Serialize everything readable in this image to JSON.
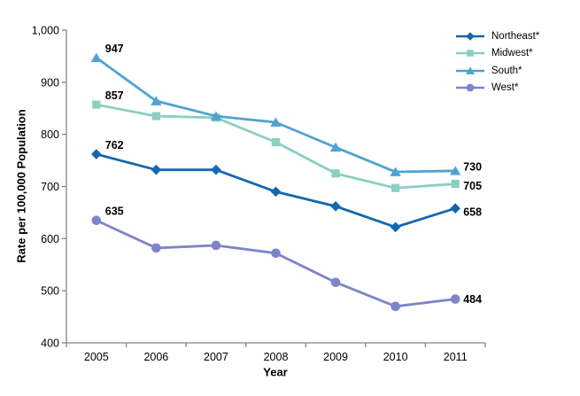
{
  "figure": {
    "background": "#FFFFFF",
    "axis_color": "#858585",
    "text_color": "#000000"
  },
  "chart_data": {
    "type": "line",
    "title": "",
    "xlabel": "Year",
    "ylabel": "Rate per 100,000 Population",
    "categories": [
      "2005",
      "2006",
      "2007",
      "2008",
      "2009",
      "2010",
      "2011"
    ],
    "ylim": [
      400,
      1000
    ],
    "y_ticks": [
      400,
      500,
      600,
      700,
      800,
      900,
      1000
    ],
    "y_tick_labels": [
      "400",
      "500",
      "600",
      "700",
      "800",
      "900",
      "1,000"
    ],
    "grid": false,
    "legend_position": "top-right",
    "series": [
      {
        "name": "Northeast*",
        "marker": "diamond",
        "color": "#1467AF",
        "values": [
          762,
          732,
          732,
          690,
          662,
          622,
          658
        ],
        "first_label": "762",
        "last_label": "658"
      },
      {
        "name": "Midwest*",
        "marker": "square",
        "color": "#8BCFC3",
        "values": [
          857,
          835,
          832,
          785,
          725,
          697,
          705
        ],
        "first_label": "857",
        "last_label": "705"
      },
      {
        "name": "South*",
        "marker": "triangle",
        "color": "#4FA3D1",
        "values": [
          947,
          864,
          835,
          823,
          775,
          728,
          730
        ],
        "first_label": "947",
        "last_label": "730"
      },
      {
        "name": "West*",
        "marker": "circle",
        "color": "#7E84C8",
        "values": [
          635,
          582,
          587,
          572,
          516,
          470,
          484
        ],
        "first_label": "635",
        "last_label": "484"
      }
    ]
  }
}
